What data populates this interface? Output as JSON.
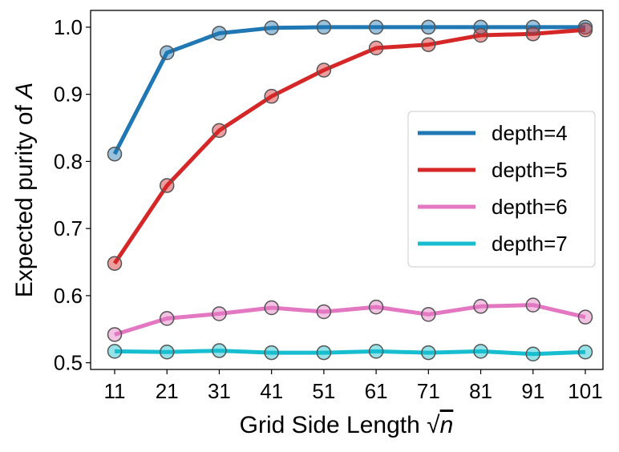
{
  "chart_data": {
    "type": "line",
    "title": "",
    "xlabel": "Grid Side Length √n",
    "xlabel_main": "Grid Side Length ",
    "xlabel_sqrt": "√",
    "xlabel_var": "n",
    "ylabel": "Expected purity of A",
    "ylabel_main": "Expected purity of ",
    "ylabel_var": "A",
    "categories": [
      "11",
      "21",
      "31",
      "41",
      "51",
      "61",
      "71",
      "81",
      "91",
      "101"
    ],
    "ylim": [
      0.49,
      1.025
    ],
    "yticks": [
      "0.5",
      "0.6",
      "0.7",
      "0.8",
      "0.9",
      "1.0"
    ],
    "grid": false,
    "legend_position": "center-right",
    "series": [
      {
        "name": "depth=4",
        "color": "#1f77b4",
        "values": [
          0.811,
          0.962,
          0.991,
          0.999,
          1.0,
          1.0,
          1.0,
          1.0,
          1.0,
          1.0
        ]
      },
      {
        "name": "depth=5",
        "color": "#d62728",
        "values": [
          0.648,
          0.764,
          0.846,
          0.897,
          0.936,
          0.969,
          0.974,
          0.988,
          0.99,
          0.996
        ]
      },
      {
        "name": "depth=6",
        "color": "#e377c2",
        "values": [
          0.542,
          0.566,
          0.573,
          0.582,
          0.576,
          0.583,
          0.572,
          0.584,
          0.586,
          0.568
        ]
      },
      {
        "name": "depth=7",
        "color": "#17becf",
        "values": [
          0.517,
          0.516,
          0.518,
          0.515,
          0.515,
          0.517,
          0.515,
          0.517,
          0.513,
          0.516
        ]
      }
    ]
  }
}
